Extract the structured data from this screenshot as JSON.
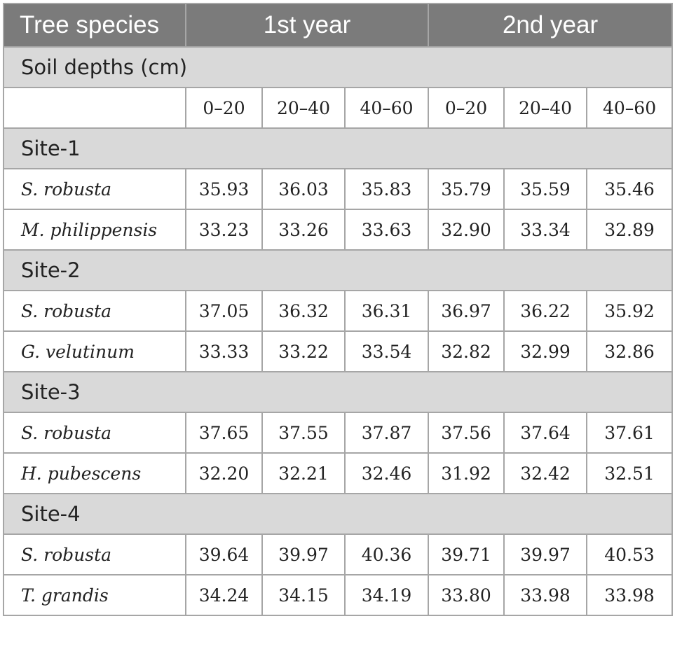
{
  "header": {
    "species_label": "Tree species",
    "year1_label": "1st year",
    "year2_label": "2nd year"
  },
  "soil_depths_label": "Soil depths (cm)",
  "depths": [
    "0–20",
    "20–40",
    "40–60",
    "0–20",
    "20–40",
    "40–60"
  ],
  "sites": [
    {
      "name": "Site-1",
      "rows": [
        {
          "species": "S. robusta",
          "values": [
            "35.93",
            "36.03",
            "35.83",
            "35.79",
            "35.59",
            "35.46"
          ]
        },
        {
          "species": "M. philippensis",
          "values": [
            "33.23",
            "33.26",
            "33.63",
            "32.90",
            "33.34",
            "32.89"
          ]
        }
      ]
    },
    {
      "name": "Site-2",
      "rows": [
        {
          "species": "S. robusta",
          "values": [
            "37.05",
            "36.32",
            "36.31",
            "36.97",
            "36.22",
            "35.92"
          ]
        },
        {
          "species": "G. velutinum",
          "values": [
            "33.33",
            "33.22",
            "33.54",
            "32.82",
            "32.99",
            "32.86"
          ]
        }
      ]
    },
    {
      "name": "Site-3",
      "rows": [
        {
          "species": "S. robusta",
          "values": [
            "37.65",
            "37.55",
            "37.87",
            "37.56",
            "37.64",
            "37.61"
          ]
        },
        {
          "species": "H. pubescens",
          "values": [
            "32.20",
            "32.21",
            "32.46",
            "31.92",
            "32.42",
            "32.51"
          ]
        }
      ]
    },
    {
      "name": "Site-4",
      "rows": [
        {
          "species": "S. robusta",
          "values": [
            "39.64",
            "39.97",
            "40.36",
            "39.71",
            "39.97",
            "40.53"
          ]
        },
        {
          "species": "T. grandis",
          "values": [
            "34.24",
            "34.15",
            "34.19",
            "33.80",
            "33.98",
            "33.98"
          ]
        }
      ]
    }
  ],
  "colors": {
    "header_bg": "#7b7b7b",
    "band_bg": "#d9d9d9",
    "border": "#a6a6a6"
  }
}
